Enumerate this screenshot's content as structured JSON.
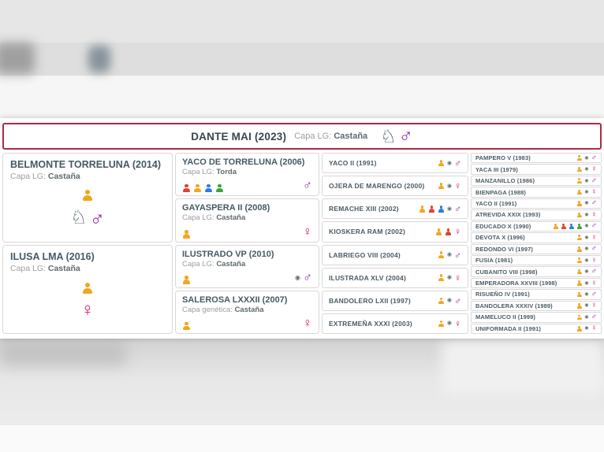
{
  "colors": {
    "accent_border": "#b02a45",
    "male": "#8e24aa",
    "female": "#d6156c",
    "person_yellow": "#f0a71f",
    "person_red": "#e0432e",
    "person_blue": "#2a7de1",
    "person_green": "#3ea33e",
    "badge": "#5b6b73"
  },
  "icon_glyphs": {
    "male": "♂",
    "female": "♀",
    "horse": "♘",
    "badge": "◉"
  },
  "header": {
    "title": "DANTE MAI (2023)",
    "capa_label": "Capa LG:",
    "capa_value": "Castaña",
    "icons": [
      "horse",
      "male"
    ]
  },
  "pedigree": {
    "gen1": [
      {
        "name": "BELMONTE TORRELUNA (2014)",
        "capa_label": "Capa LG:",
        "capa_value": "Castaña",
        "icons_top": [
          "person-yellow"
        ],
        "icons_bottom": [
          "horse",
          "male"
        ]
      },
      {
        "name": "ILUSA LMA (2016)",
        "capa_label": "Capa LG:",
        "capa_value": "Castaña",
        "icons_top": [
          "person-yellow"
        ],
        "icons_bottom": [
          "female"
        ]
      }
    ],
    "gen2": [
      {
        "name": "YACO DE TORRELUNA (2006)",
        "capa_label": "Capa LG:",
        "capa_value": "Torda",
        "left_icons": [
          "person-red",
          "person-yellow",
          "person-blue",
          "person-green"
        ],
        "right_icons": [
          "male"
        ]
      },
      {
        "name": "GAYASPERA II (2008)",
        "capa_label": "Capa LG:",
        "capa_value": "Castaña",
        "left_icons": [
          "person-yellow"
        ],
        "right_icons": [
          "female"
        ]
      },
      {
        "name": "ILUSTRADO VP (2010)",
        "capa_label": "Capa LG:",
        "capa_value": "Castaña",
        "left_icons": [
          "person-yellow"
        ],
        "right_icons": [
          "badge",
          "male"
        ]
      },
      {
        "name": "SALEROSA LXXXII (2007)",
        "capa_label": "Capa genética:",
        "capa_value": "Castaña",
        "left_icons": [
          "person-yellow"
        ],
        "right_icons": [
          "female"
        ]
      }
    ],
    "gen3": [
      {
        "name": "YACO II (1991)",
        "icons": [
          "person-yellow",
          "badge",
          "male"
        ]
      },
      {
        "name": "OJERA DE MARENGO (2000)",
        "icons": [
          "person-yellow",
          "badge",
          "female"
        ]
      },
      {
        "name": "REMACHE XIII (2002)",
        "icons": [
          "person-yellow",
          "person-red",
          "person-blue",
          "badge",
          "male"
        ]
      },
      {
        "name": "KIOSKERA RAM (2002)",
        "icons": [
          "person-yellow",
          "person-red",
          "female"
        ]
      },
      {
        "name": "LABRIEGO VIII (2004)",
        "icons": [
          "person-yellow",
          "badge",
          "male"
        ]
      },
      {
        "name": "ILUSTRADA XLV (2004)",
        "icons": [
          "person-yellow",
          "badge",
          "female"
        ]
      },
      {
        "name": "BANDOLERO LXII (1997)",
        "icons": [
          "person-yellow",
          "badge",
          "male"
        ]
      },
      {
        "name": "EXTREMEÑA XXXI (2003)",
        "icons": [
          "person-yellow",
          "badge",
          "female"
        ]
      }
    ],
    "gen4": [
      {
        "name": "PAMPERO V (1983)",
        "icons": [
          "person-yellow",
          "badge",
          "male"
        ]
      },
      {
        "name": "YACA III (1979)",
        "icons": [
          "person-yellow",
          "badge",
          "female"
        ]
      },
      {
        "name": "MANZANILLO (1986)",
        "icons": [
          "person-yellow",
          "badge",
          "male"
        ]
      },
      {
        "name": "BIENPAGA (1988)",
        "icons": [
          "person-yellow",
          "badge",
          "female"
        ]
      },
      {
        "name": "YACO II (1991)",
        "icons": [
          "person-yellow",
          "badge",
          "male"
        ]
      },
      {
        "name": "ATREVIDA XXIX (1993)",
        "icons": [
          "person-yellow",
          "badge",
          "female"
        ]
      },
      {
        "name": "EDUCADO X (1990)",
        "icons": [
          "person-yellow",
          "person-red",
          "person-blue",
          "person-green",
          "badge",
          "male"
        ]
      },
      {
        "name": "DEVOTA X (1996)",
        "icons": [
          "person-yellow",
          "badge",
          "female"
        ]
      },
      {
        "name": "REDONDO VI (1997)",
        "icons": [
          "person-yellow",
          "badge",
          "male"
        ]
      },
      {
        "name": "FUSIA (1981)",
        "icons": [
          "person-yellow",
          "badge",
          "female"
        ]
      },
      {
        "name": "CUBANITO VIII (1998)",
        "icons": [
          "person-yellow",
          "badge",
          "male"
        ]
      },
      {
        "name": "EMPERADORA XXVIII (1998)",
        "icons": [
          "person-yellow",
          "badge",
          "female"
        ]
      },
      {
        "name": "RISUEÑO IV (1991)",
        "icons": [
          "person-yellow",
          "badge",
          "male"
        ]
      },
      {
        "name": "BANDOLERA XXXIV (1989)",
        "icons": [
          "person-yellow",
          "badge",
          "female"
        ]
      },
      {
        "name": "MAMELUCO II (1999)",
        "icons": [
          "person-yellow",
          "badge",
          "male"
        ]
      },
      {
        "name": "UNIFORMADA II (1991)",
        "icons": [
          "person-yellow",
          "badge",
          "female"
        ]
      }
    ]
  }
}
